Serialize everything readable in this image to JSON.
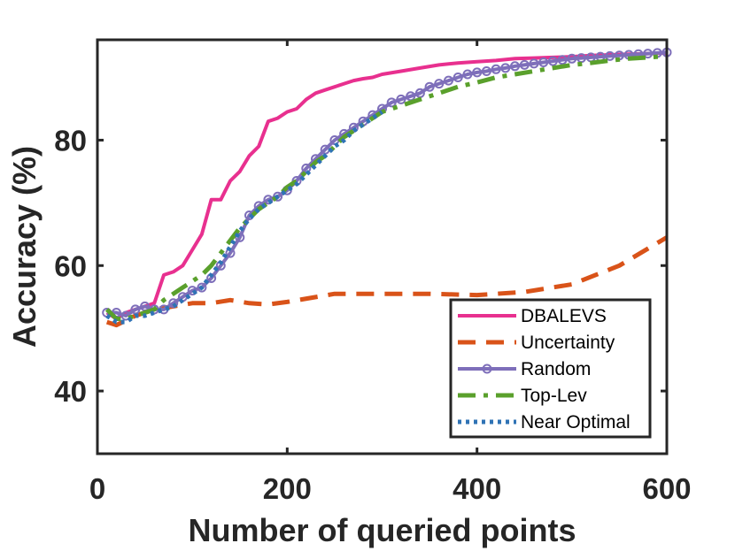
{
  "chart_data": {
    "type": "line",
    "title": "",
    "xlabel": "Number of queried points",
    "ylabel": "Accuracy (%)",
    "xlim": [
      0,
      600
    ],
    "ylim": [
      30,
      96
    ],
    "xticks": [
      0,
      200,
      400,
      600
    ],
    "xtick_labels": [
      "0",
      "200",
      "400",
      "600"
    ],
    "yticks": [
      40,
      60,
      80
    ],
    "ytick_labels": [
      "40",
      "60",
      "80"
    ],
    "grid": false,
    "legend_position": "bottom-right",
    "series": [
      {
        "name": "DBALEVS",
        "color": "#e8308f",
        "style": "solid",
        "marker": "none",
        "x": [
          10,
          20,
          30,
          40,
          50,
          60,
          70,
          80,
          90,
          100,
          110,
          120,
          130,
          140,
          150,
          160,
          170,
          180,
          190,
          200,
          210,
          220,
          230,
          240,
          250,
          260,
          270,
          280,
          290,
          300,
          320,
          340,
          360,
          380,
          400,
          420,
          440,
          460,
          480,
          500,
          520,
          540,
          560,
          580,
          600
        ],
        "y": [
          52.5,
          51.5,
          52.5,
          53,
          53.5,
          54,
          58.5,
          59,
          60,
          62.5,
          65,
          70.5,
          70.5,
          73.5,
          75,
          77.5,
          79,
          83,
          83.5,
          84.5,
          85,
          86.5,
          87.5,
          88,
          88.5,
          89,
          89.5,
          89.8,
          90,
          90.5,
          91,
          91.5,
          92,
          92.3,
          92.5,
          92.7,
          93,
          93.1,
          93.2,
          93.3,
          93.5,
          93.6,
          93.7,
          93.8,
          93.9
        ]
      },
      {
        "name": "Uncertainty",
        "color": "#d95319",
        "style": "dashed",
        "marker": "none",
        "x": [
          10,
          20,
          40,
          60,
          80,
          100,
          120,
          140,
          160,
          180,
          200,
          250,
          300,
          350,
          400,
          450,
          500,
          550,
          600
        ],
        "y": [
          51,
          50.5,
          52,
          53,
          53.5,
          54,
          54,
          54.5,
          54,
          53.8,
          54.2,
          55.5,
          55.5,
          55.5,
          55.3,
          55.8,
          57,
          60,
          64.5
        ]
      },
      {
        "name": "Random",
        "color": "#7e6fba",
        "style": "solid",
        "marker": "circle",
        "x": [
          10,
          20,
          30,
          40,
          50,
          60,
          70,
          80,
          90,
          100,
          110,
          120,
          130,
          140,
          150,
          160,
          170,
          180,
          190,
          200,
          210,
          220,
          230,
          240,
          250,
          260,
          270,
          280,
          290,
          300,
          310,
          320,
          330,
          340,
          350,
          360,
          370,
          380,
          390,
          400,
          410,
          420,
          430,
          440,
          450,
          460,
          470,
          480,
          490,
          500,
          510,
          520,
          530,
          540,
          550,
          560,
          570,
          580,
          590,
          600
        ],
        "y": [
          52.5,
          52.5,
          52,
          53,
          53.5,
          53,
          53,
          54,
          55,
          56,
          56.5,
          58,
          60,
          62,
          64.5,
          68,
          69.5,
          70.5,
          71,
          72,
          73.5,
          75.5,
          77,
          78.5,
          80,
          81,
          82,
          83,
          84,
          85,
          86,
          86.5,
          87,
          87.5,
          88.5,
          89,
          89.5,
          90,
          90.5,
          90.8,
          91,
          91.3,
          91.5,
          91.8,
          92,
          92.2,
          92.4,
          92.6,
          92.8,
          93,
          93.1,
          93.2,
          93.3,
          93.4,
          93.5,
          93.6,
          93.7,
          93.8,
          93.9,
          94
        ]
      },
      {
        "name": "Top-Lev",
        "color": "#5aa02c",
        "style": "dashdot",
        "marker": "none",
        "x": [
          10,
          20,
          30,
          40,
          50,
          60,
          70,
          80,
          90,
          100,
          110,
          120,
          130,
          140,
          150,
          160,
          170,
          180,
          190,
          200,
          210,
          220,
          230,
          240,
          250,
          260,
          270,
          280,
          290,
          300,
          320,
          340,
          360,
          380,
          400,
          420,
          440,
          460,
          480,
          500,
          520,
          540,
          560,
          580,
          600
        ],
        "y": [
          53,
          51.5,
          51.5,
          52,
          52.5,
          53,
          54.5,
          55.5,
          56.5,
          57.5,
          58.5,
          60,
          62,
          64,
          66,
          67.5,
          69,
          70,
          71,
          72.5,
          73.5,
          75,
          76.5,
          77.5,
          79,
          80.5,
          81.5,
          82.5,
          83.5,
          84.5,
          85.5,
          86.5,
          87.5,
          88.5,
          89.2,
          90,
          90.5,
          91,
          91.5,
          92,
          92.3,
          92.7,
          93,
          93.2,
          93.4
        ]
      },
      {
        "name": "Near Optimal",
        "color": "#2f73b5",
        "style": "dotted",
        "marker": "none",
        "x": [
          10,
          20,
          30,
          40,
          50,
          60,
          70,
          80,
          90,
          100,
          110,
          120,
          130,
          140,
          150,
          160,
          170,
          180,
          190,
          200,
          210,
          220,
          230,
          240,
          250,
          260,
          270,
          280,
          290,
          300
        ],
        "y": [
          52,
          51,
          51,
          52,
          52,
          52.5,
          53,
          53.5,
          54.5,
          55.5,
          56.5,
          58.5,
          60.5,
          63,
          65.5,
          67.5,
          69,
          70,
          71,
          72,
          73,
          74.5,
          76,
          77.5,
          79,
          80,
          81.5,
          82.5,
          83.5,
          84.5
        ]
      }
    ]
  }
}
